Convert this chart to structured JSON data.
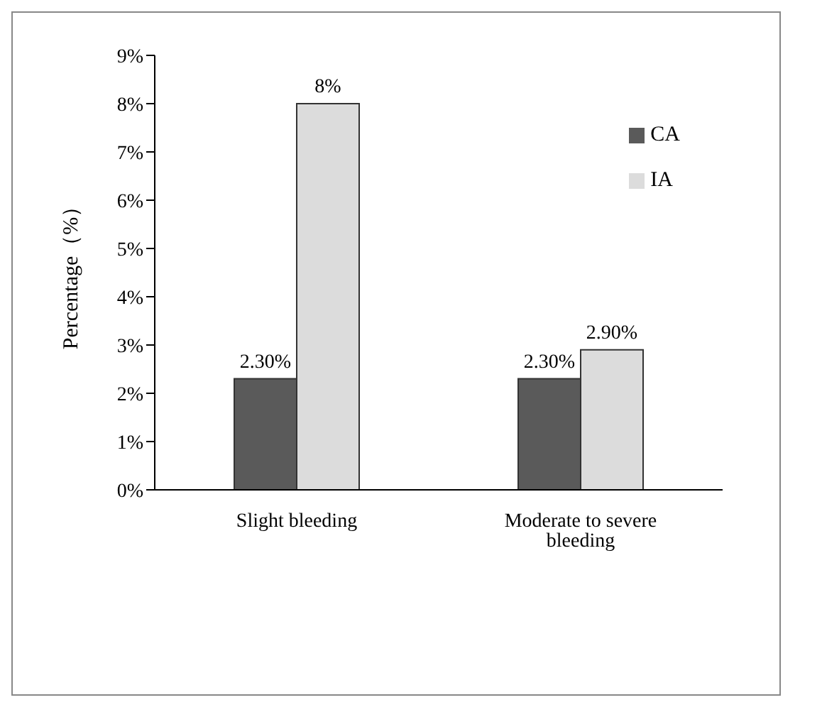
{
  "chart_data": {
    "type": "bar",
    "ylabel": "Percentage（%）",
    "categories": [
      "Slight bleeding",
      "Moderate to severe bleeding"
    ],
    "series": [
      {
        "name": "CA",
        "color": "#5a5a5a",
        "values": [
          2.3,
          2.3
        ],
        "value_labels": [
          "2.30%",
          "2.30%"
        ]
      },
      {
        "name": "IA",
        "color": "#dcdcdc",
        "values": [
          8,
          2.9
        ],
        "value_labels": [
          "8%",
          "2.90%"
        ]
      }
    ],
    "ylim": [
      0,
      9
    ],
    "yticks": [
      {
        "value": 0,
        "label": "0%"
      },
      {
        "value": 1,
        "label": "1%"
      },
      {
        "value": 2,
        "label": "2%"
      },
      {
        "value": 3,
        "label": "3%"
      },
      {
        "value": 4,
        "label": "4%"
      },
      {
        "value": 5,
        "label": "5%"
      },
      {
        "value": 6,
        "label": "6%"
      },
      {
        "value": 7,
        "label": "7%"
      },
      {
        "value": 8,
        "label": "8%"
      },
      {
        "value": 9,
        "label": "9%"
      }
    ],
    "grid": false,
    "legend": "top right"
  }
}
